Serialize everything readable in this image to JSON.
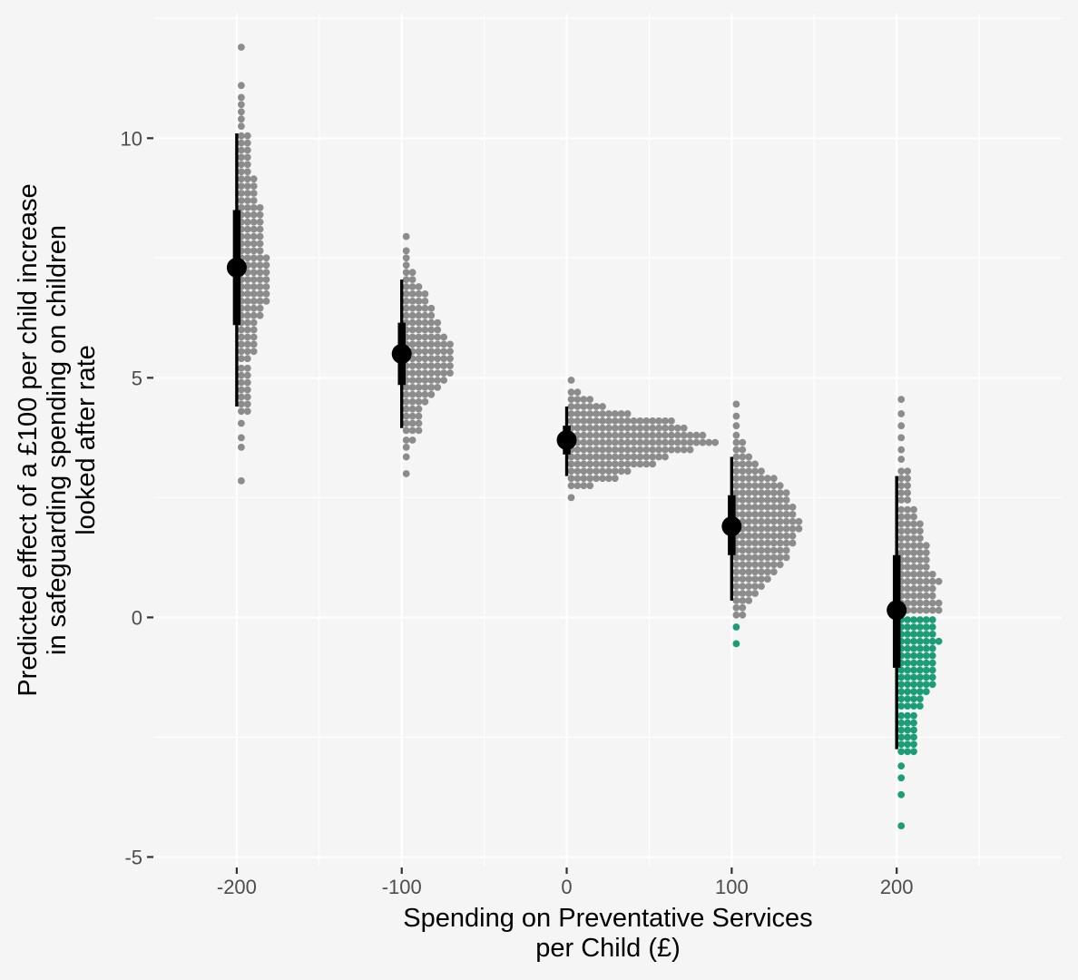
{
  "chart_data": {
    "type": "dotplot",
    "xlabel": [
      "Spending on Preventative Services",
      "per Child (£)"
    ],
    "ylabel": [
      "Predicted effect of a £100 per child increase",
      "in safeguarding spending on children",
      "looked after rate"
    ],
    "x_ticks": [
      "-200",
      "-100",
      "0",
      "100",
      "200"
    ],
    "y_ticks": [
      "-5",
      "0",
      "5",
      "10"
    ],
    "xlim": [
      -250,
      300
    ],
    "ylim": [
      -5.2,
      12.6
    ],
    "grid": true,
    "colors": {
      "background": "#f5f5f5",
      "grid": "#ffffff",
      "dot_positive": "#8c8c8c",
      "dot_negative": "#1b9e77",
      "interval": "#000000"
    },
    "bin_width": 0.145,
    "groups": [
      {
        "x": -200,
        "median": 7.3,
        "interval_66": [
          6.1,
          8.5
        ],
        "interval_95": [
          4.4,
          10.1
        ],
        "bins": [
          [
            2.85,
            1
          ],
          [
            3.55,
            1
          ],
          [
            3.75,
            1
          ],
          [
            4.05,
            1
          ],
          [
            4.3,
            2
          ],
          [
            4.45,
            2
          ],
          [
            4.6,
            2
          ],
          [
            4.75,
            2
          ],
          [
            4.9,
            2
          ],
          [
            5.05,
            2
          ],
          [
            5.2,
            2
          ],
          [
            5.4,
            2
          ],
          [
            5.55,
            3
          ],
          [
            5.7,
            3
          ],
          [
            5.85,
            3
          ],
          [
            6.0,
            3
          ],
          [
            6.15,
            3
          ],
          [
            6.3,
            4
          ],
          [
            6.45,
            4
          ],
          [
            6.6,
            5
          ],
          [
            6.75,
            5
          ],
          [
            6.9,
            5
          ],
          [
            7.05,
            5
          ],
          [
            7.2,
            5
          ],
          [
            7.35,
            5
          ],
          [
            7.5,
            5
          ],
          [
            7.65,
            4
          ],
          [
            7.8,
            4
          ],
          [
            7.95,
            4
          ],
          [
            8.1,
            4
          ],
          [
            8.25,
            4
          ],
          [
            8.4,
            4
          ],
          [
            8.55,
            4
          ],
          [
            8.7,
            3
          ],
          [
            8.85,
            3
          ],
          [
            9.0,
            3
          ],
          [
            9.15,
            3
          ],
          [
            9.3,
            2
          ],
          [
            9.45,
            2
          ],
          [
            9.6,
            2
          ],
          [
            9.75,
            2
          ],
          [
            9.9,
            2
          ],
          [
            10.05,
            2
          ],
          [
            10.25,
            1
          ],
          [
            10.4,
            1
          ],
          [
            10.55,
            1
          ],
          [
            10.7,
            1
          ],
          [
            10.85,
            1
          ],
          [
            11.1,
            1
          ],
          [
            11.9,
            1
          ]
        ]
      },
      {
        "x": -100,
        "median": 5.5,
        "interval_66": [
          4.85,
          6.15
        ],
        "interval_95": [
          3.95,
          7.05
        ],
        "bins": [
          [
            3.0,
            1
          ],
          [
            3.35,
            1
          ],
          [
            3.55,
            1
          ],
          [
            3.7,
            2
          ],
          [
            3.9,
            3
          ],
          [
            4.05,
            3
          ],
          [
            4.2,
            3
          ],
          [
            4.35,
            3
          ],
          [
            4.5,
            4
          ],
          [
            4.65,
            5
          ],
          [
            4.8,
            6
          ],
          [
            4.95,
            7
          ],
          [
            5.1,
            8
          ],
          [
            5.25,
            8
          ],
          [
            5.4,
            8
          ],
          [
            5.55,
            8
          ],
          [
            5.7,
            8
          ],
          [
            5.85,
            7
          ],
          [
            6.0,
            6
          ],
          [
            6.15,
            6
          ],
          [
            6.3,
            5
          ],
          [
            6.45,
            5
          ],
          [
            6.6,
            4
          ],
          [
            6.75,
            4
          ],
          [
            6.9,
            3
          ],
          [
            7.05,
            2
          ],
          [
            7.2,
            2
          ],
          [
            7.35,
            1
          ],
          [
            7.5,
            1
          ],
          [
            7.65,
            1
          ],
          [
            7.95,
            1
          ]
        ]
      },
      {
        "x": 0,
        "median": 3.7,
        "interval_66": [
          3.4,
          4.0
        ],
        "interval_95": [
          2.95,
          4.4
        ],
        "bins": [
          [
            2.5,
            1
          ],
          [
            2.75,
            4
          ],
          [
            2.9,
            8
          ],
          [
            3.05,
            10
          ],
          [
            3.2,
            14
          ],
          [
            3.35,
            16
          ],
          [
            3.5,
            20
          ],
          [
            3.65,
            24
          ],
          [
            3.8,
            22
          ],
          [
            3.95,
            19
          ],
          [
            4.1,
            17
          ],
          [
            4.25,
            10
          ],
          [
            4.4,
            6
          ],
          [
            4.55,
            4
          ],
          [
            4.7,
            2
          ],
          [
            4.95,
            1
          ]
        ]
      },
      {
        "x": 100,
        "median": 1.9,
        "interval_66": [
          1.3,
          2.55
        ],
        "interval_95": [
          0.35,
          3.35
        ],
        "bins": [
          [
            -0.55,
            1
          ],
          [
            -0.2,
            1
          ],
          [
            0.05,
            2
          ],
          [
            0.2,
            2
          ],
          [
            0.35,
            3
          ],
          [
            0.5,
            4
          ],
          [
            0.65,
            5
          ],
          [
            0.8,
            6
          ],
          [
            0.95,
            7
          ],
          [
            1.1,
            8
          ],
          [
            1.25,
            9
          ],
          [
            1.4,
            9
          ],
          [
            1.55,
            10
          ],
          [
            1.7,
            10
          ],
          [
            1.85,
            11
          ],
          [
            2.0,
            11
          ],
          [
            2.15,
            10
          ],
          [
            2.3,
            10
          ],
          [
            2.45,
            9
          ],
          [
            2.6,
            9
          ],
          [
            2.75,
            8
          ],
          [
            2.9,
            7
          ],
          [
            3.05,
            5
          ],
          [
            3.2,
            4
          ],
          [
            3.35,
            3
          ],
          [
            3.5,
            2
          ],
          [
            3.65,
            2
          ],
          [
            3.8,
            1
          ],
          [
            4.0,
            1
          ],
          [
            4.2,
            1
          ],
          [
            4.45,
            1
          ]
        ]
      },
      {
        "x": 200,
        "median": 0.15,
        "interval_66": [
          -1.05,
          1.3
        ],
        "interval_95": [
          -2.75,
          2.95
        ],
        "bins": [
          [
            -4.35,
            1
          ],
          [
            -3.7,
            1
          ],
          [
            -3.35,
            1
          ],
          [
            -3.1,
            1
          ],
          [
            -2.8,
            3
          ],
          [
            -2.65,
            3
          ],
          [
            -2.5,
            3
          ],
          [
            -2.35,
            3
          ],
          [
            -2.2,
            3
          ],
          [
            -2.05,
            3
          ],
          [
            -1.85,
            4
          ],
          [
            -1.7,
            4
          ],
          [
            -1.55,
            5
          ],
          [
            -1.4,
            6
          ],
          [
            -1.25,
            6
          ],
          [
            -1.1,
            6
          ],
          [
            -0.95,
            6
          ],
          [
            -0.8,
            6
          ],
          [
            -0.65,
            6
          ],
          [
            -0.5,
            7
          ],
          [
            -0.35,
            6
          ],
          [
            -0.2,
            6
          ],
          [
            -0.05,
            6
          ],
          [
            0.15,
            7
          ],
          [
            0.3,
            7
          ],
          [
            0.45,
            6
          ],
          [
            0.6,
            6
          ],
          [
            0.75,
            7
          ],
          [
            0.9,
            6
          ],
          [
            1.05,
            5
          ],
          [
            1.2,
            5
          ],
          [
            1.35,
            5
          ],
          [
            1.5,
            5
          ],
          [
            1.65,
            4
          ],
          [
            1.8,
            4
          ],
          [
            1.95,
            4
          ],
          [
            2.1,
            3
          ],
          [
            2.25,
            3
          ],
          [
            2.45,
            2
          ],
          [
            2.6,
            2
          ],
          [
            2.75,
            2
          ],
          [
            2.9,
            2
          ],
          [
            3.05,
            2
          ],
          [
            3.3,
            1
          ],
          [
            3.5,
            1
          ],
          [
            3.75,
            1
          ],
          [
            4.0,
            1
          ],
          [
            4.25,
            1
          ],
          [
            4.55,
            1
          ]
        ]
      }
    ]
  }
}
